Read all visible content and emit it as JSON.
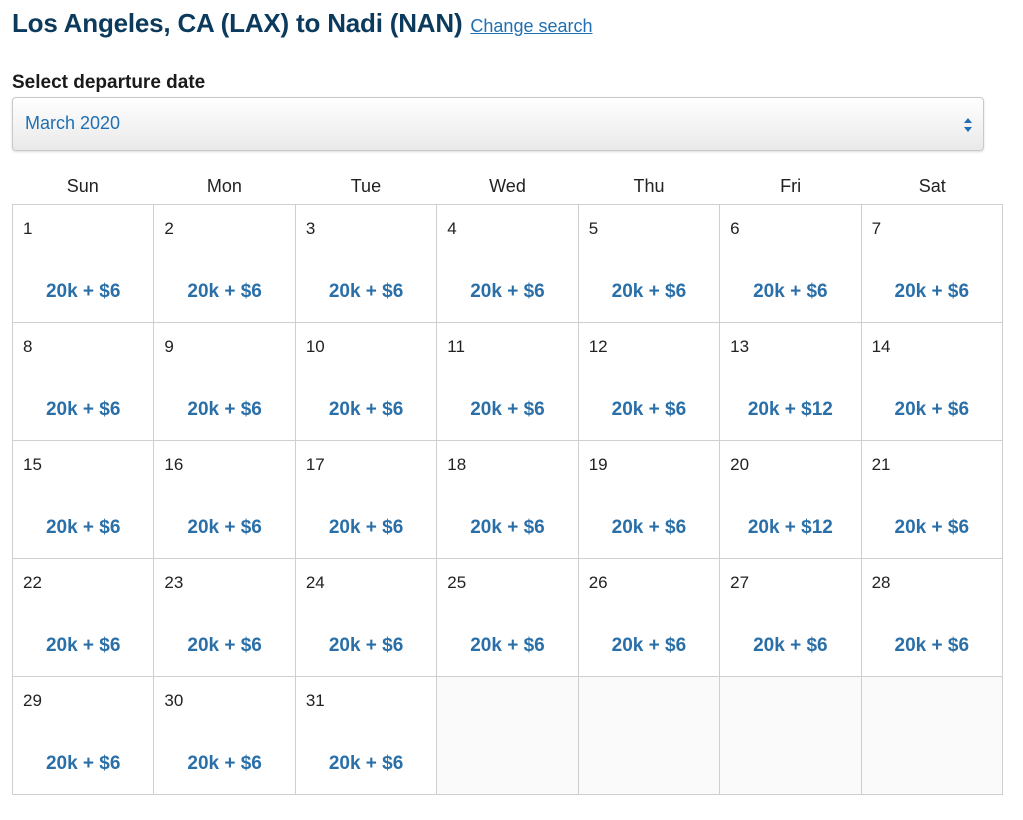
{
  "header": {
    "title": "Los Angeles, CA (LAX) to Nadi (NAN)",
    "change_search": "Change search"
  },
  "date_select": {
    "label": "Select departure date",
    "selected": "March 2020"
  },
  "weekdays": [
    "Sun",
    "Mon",
    "Tue",
    "Wed",
    "Thu",
    "Fri",
    "Sat"
  ],
  "calendar": {
    "days": [
      {
        "day": "1",
        "fare": "20k + $6"
      },
      {
        "day": "2",
        "fare": "20k + $6"
      },
      {
        "day": "3",
        "fare": "20k + $6"
      },
      {
        "day": "4",
        "fare": "20k + $6"
      },
      {
        "day": "5",
        "fare": "20k + $6"
      },
      {
        "day": "6",
        "fare": "20k + $6"
      },
      {
        "day": "7",
        "fare": "20k + $6"
      },
      {
        "day": "8",
        "fare": "20k + $6"
      },
      {
        "day": "9",
        "fare": "20k + $6"
      },
      {
        "day": "10",
        "fare": "20k + $6"
      },
      {
        "day": "11",
        "fare": "20k + $6"
      },
      {
        "day": "12",
        "fare": "20k + $6"
      },
      {
        "day": "13",
        "fare": "20k + $12"
      },
      {
        "day": "14",
        "fare": "20k + $6"
      },
      {
        "day": "15",
        "fare": "20k + $6"
      },
      {
        "day": "16",
        "fare": "20k + $6"
      },
      {
        "day": "17",
        "fare": "20k + $6"
      },
      {
        "day": "18",
        "fare": "20k + $6"
      },
      {
        "day": "19",
        "fare": "20k + $6"
      },
      {
        "day": "20",
        "fare": "20k + $12"
      },
      {
        "day": "21",
        "fare": "20k + $6"
      },
      {
        "day": "22",
        "fare": "20k + $6"
      },
      {
        "day": "23",
        "fare": "20k + $6"
      },
      {
        "day": "24",
        "fare": "20k + $6"
      },
      {
        "day": "25",
        "fare": "20k + $6"
      },
      {
        "day": "26",
        "fare": "20k + $6"
      },
      {
        "day": "27",
        "fare": "20k + $6"
      },
      {
        "day": "28",
        "fare": "20k + $6"
      },
      {
        "day": "29",
        "fare": "20k + $6"
      },
      {
        "day": "30",
        "fare": "20k + $6"
      },
      {
        "day": "31",
        "fare": "20k + $6"
      }
    ],
    "trailing_empty": 4
  },
  "colors": {
    "title": "#0b3a5c",
    "link": "#1f6fb2",
    "fare": "#2a6fa8",
    "grid": "#cfcfcf"
  },
  "icons": {
    "select_arrows": "sort-arrows-icon"
  }
}
